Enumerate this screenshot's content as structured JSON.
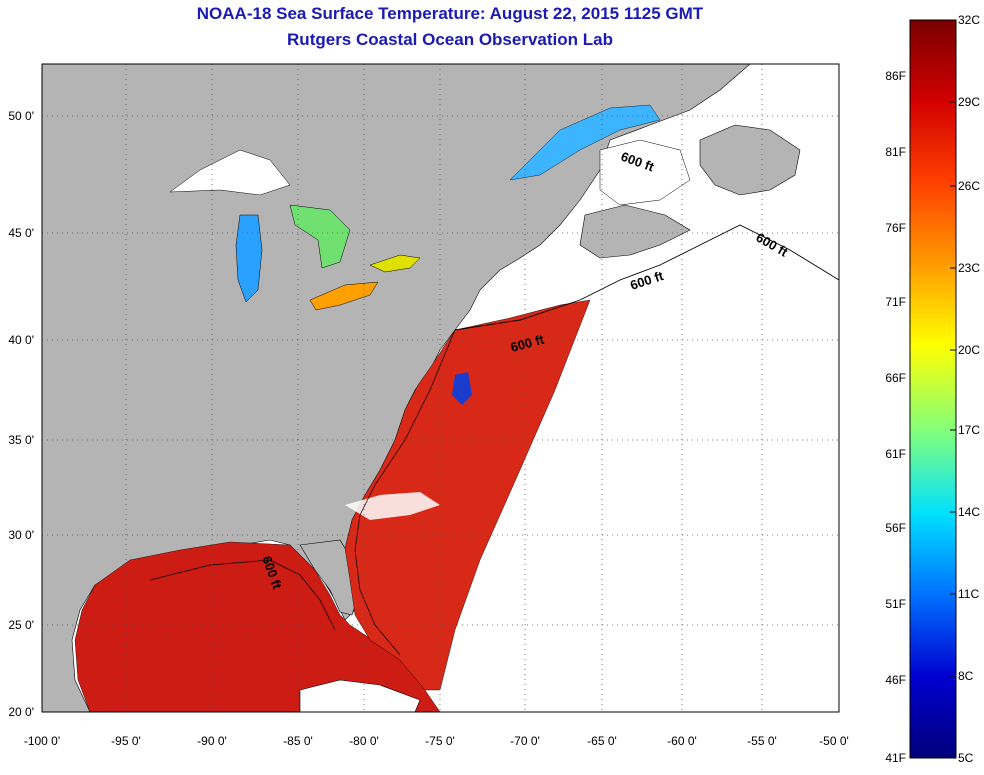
{
  "header": {
    "title": "NOAA-18 Sea Surface Temperature:  August 22, 2015 1125 GMT",
    "subtitle": "Rutgers Coastal Ocean Observation Lab"
  },
  "map": {
    "lat_labels": [
      "50 0'",
      "45 0'",
      "40 0'",
      "35 0'",
      "30 0'",
      "25 0'",
      "20 0'"
    ],
    "lon_labels": [
      "-100 0'",
      "-95 0'",
      "-90 0'",
      "-85 0'",
      "-80 0'",
      "-75 0'",
      "-70 0'",
      "-65 0'",
      "-60 0'",
      "-55 0'",
      "-50 0'"
    ],
    "contour_label": "600 ft",
    "colors": {
      "land": "#b4b4b4",
      "no_data": "#ffffff",
      "warm_sst": "#d21e14",
      "grid": "#555555"
    }
  },
  "colorbar": {
    "celsius_labels": [
      "32C",
      "29C",
      "26C",
      "23C",
      "20C",
      "17C",
      "14C",
      "11C",
      "8C",
      "5C"
    ],
    "fahrenheit_labels": [
      "86F",
      "81F",
      "76F",
      "71F",
      "66F",
      "61F",
      "56F",
      "51F",
      "46F",
      "41F"
    ],
    "gradient": [
      "#7a0000",
      "#d20000",
      "#ff4000",
      "#ff9a00",
      "#ffff00",
      "#7fff7f",
      "#00e0ff",
      "#0070ff",
      "#0000d0",
      "#00007a"
    ]
  }
}
